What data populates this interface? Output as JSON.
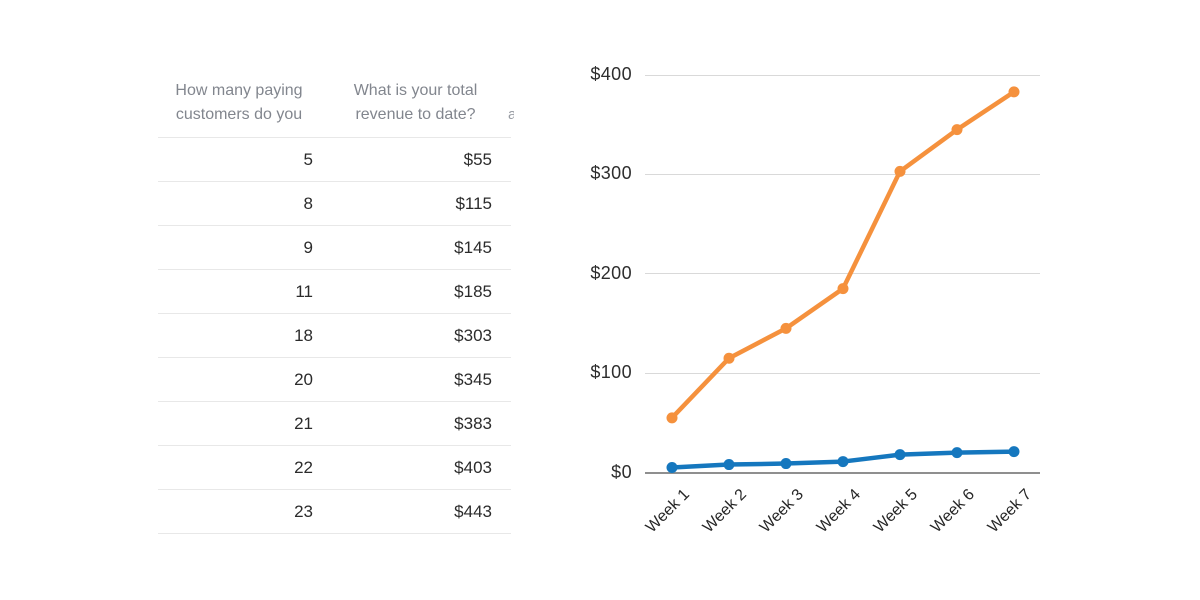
{
  "table": {
    "column_headers": [
      {
        "line1": "How many paying",
        "line2": "customers do you"
      },
      {
        "line1": "What is your total",
        "line2": "revenue to date?"
      }
    ],
    "clipped_header_fragment": "a",
    "rows": [
      [
        "5",
        "$55"
      ],
      [
        "8",
        "$115"
      ],
      [
        "9",
        "$145"
      ],
      [
        "11",
        "$185"
      ],
      [
        "18",
        "$303"
      ],
      [
        "20",
        "$345"
      ],
      [
        "21",
        "$383"
      ],
      [
        "22",
        "$403"
      ],
      [
        "23",
        "$443"
      ]
    ]
  },
  "chart_data": {
    "type": "line",
    "categories": [
      "Week 1",
      "Week 2",
      "Week 3",
      "Week 4",
      "Week 5",
      "Week 6",
      "Week 7"
    ],
    "series": [
      {
        "name": "Total revenue to date",
        "color": "#F5913D",
        "values": [
          55,
          115,
          145,
          185,
          303,
          345,
          383
        ]
      },
      {
        "name": "Paying customers",
        "color": "#1577BE",
        "values": [
          5,
          8,
          9,
          11,
          18,
          20,
          21
        ]
      }
    ],
    "yticks": [
      {
        "value": 0,
        "label": "$0"
      },
      {
        "value": 100,
        "label": "$100"
      },
      {
        "value": 200,
        "label": "$200"
      },
      {
        "value": 300,
        "label": "$300"
      },
      {
        "value": 400,
        "label": "$400"
      }
    ],
    "ylim": [
      0,
      400
    ],
    "grid": "horizontal",
    "legend": "none",
    "title": "",
    "xlabel": "",
    "ylabel": ""
  }
}
